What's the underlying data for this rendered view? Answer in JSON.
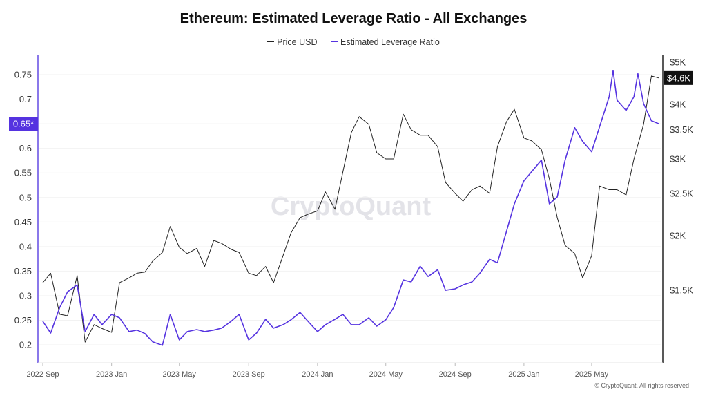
{
  "chart_data": {
    "type": "line",
    "title": "Ethereum: Estimated Leverage Ratio - All Exchanges",
    "legend": {
      "placement": "top-center"
    },
    "grid": true,
    "watermark": "CryptoQuant",
    "footer": "© CryptoQuant. All rights reserved",
    "x_axis": {
      "type": "date",
      "range": [
        "2022-09-01",
        "2025-08-28"
      ],
      "ticks": [
        [
          "2022-09-01",
          "2022 Sep"
        ],
        [
          "2023-01-01",
          "2023 Jan"
        ],
        [
          "2023-05-01",
          "2023 May"
        ],
        [
          "2023-09-01",
          "2023 Sep"
        ],
        [
          "2024-01-01",
          "2024 Jan"
        ],
        [
          "2024-05-01",
          "2024 May"
        ],
        [
          "2024-09-01",
          "2024 Sep"
        ],
        [
          "2025-01-01",
          "2025 Jan"
        ],
        [
          "2025-05-01",
          "2025 May"
        ]
      ]
    },
    "y_left": {
      "range": [
        0.17,
        0.795
      ],
      "ticks": [
        "0.2",
        "0.25",
        "0.3",
        "0.35",
        "0.4",
        "0.45",
        "0.5",
        "0.55",
        "0.6",
        "0.65",
        "0.7",
        "0.75"
      ],
      "current_label": "0.65*",
      "current_value": 0.65,
      "color": "#5533e0"
    },
    "y_right": {
      "scale": "log",
      "range": [
        1050,
        5100
      ],
      "ticks": [
        [
          1500,
          "$1.5K"
        ],
        [
          2000,
          "$2K"
        ],
        [
          2500,
          "$2.5K"
        ],
        [
          3000,
          "$3K"
        ],
        [
          3500,
          "$3.5K"
        ],
        [
          4000,
          "$4K"
        ],
        [
          5000,
          "$5K"
        ]
      ],
      "current_label": "$4.6K",
      "current_value": 4600
    },
    "series": [
      {
        "name": "Price USD",
        "axis": "right",
        "color": "#222222",
        "points": [
          [
            "2022-09-01",
            1560
          ],
          [
            "2022-09-15",
            1640
          ],
          [
            "2022-10-01",
            1320
          ],
          [
            "2022-10-15",
            1310
          ],
          [
            "2022-11-01",
            1620
          ],
          [
            "2022-11-15",
            1140
          ],
          [
            "2022-12-01",
            1250
          ],
          [
            "2022-12-15",
            1225
          ],
          [
            "2023-01-01",
            1200
          ],
          [
            "2023-01-15",
            1560
          ],
          [
            "2023-02-01",
            1600
          ],
          [
            "2023-02-15",
            1640
          ],
          [
            "2023-03-01",
            1650
          ],
          [
            "2023-03-15",
            1750
          ],
          [
            "2023-04-01",
            1830
          ],
          [
            "2023-04-15",
            2100
          ],
          [
            "2023-05-01",
            1880
          ],
          [
            "2023-05-15",
            1820
          ],
          [
            "2023-06-01",
            1870
          ],
          [
            "2023-06-15",
            1700
          ],
          [
            "2023-07-01",
            1950
          ],
          [
            "2023-07-15",
            1920
          ],
          [
            "2023-08-01",
            1860
          ],
          [
            "2023-08-15",
            1830
          ],
          [
            "2023-09-01",
            1640
          ],
          [
            "2023-09-15",
            1620
          ],
          [
            "2023-10-01",
            1700
          ],
          [
            "2023-10-15",
            1560
          ],
          [
            "2023-11-01",
            1800
          ],
          [
            "2023-11-15",
            2030
          ],
          [
            "2023-12-01",
            2200
          ],
          [
            "2023-12-15",
            2240
          ],
          [
            "2024-01-01",
            2280
          ],
          [
            "2024-01-15",
            2520
          ],
          [
            "2024-02-01",
            2300
          ],
          [
            "2024-02-15",
            2800
          ],
          [
            "2024-03-01",
            3450
          ],
          [
            "2024-03-15",
            3750
          ],
          [
            "2024-04-01",
            3600
          ],
          [
            "2024-04-15",
            3100
          ],
          [
            "2024-05-01",
            3000
          ],
          [
            "2024-05-15",
            3000
          ],
          [
            "2024-06-01",
            3800
          ],
          [
            "2024-06-15",
            3500
          ],
          [
            "2024-07-01",
            3400
          ],
          [
            "2024-07-15",
            3400
          ],
          [
            "2024-08-01",
            3200
          ],
          [
            "2024-08-15",
            2650
          ],
          [
            "2024-09-01",
            2500
          ],
          [
            "2024-09-15",
            2400
          ],
          [
            "2024-10-01",
            2550
          ],
          [
            "2024-10-15",
            2600
          ],
          [
            "2024-11-01",
            2500
          ],
          [
            "2024-11-15",
            3200
          ],
          [
            "2024-12-01",
            3650
          ],
          [
            "2024-12-15",
            3900
          ],
          [
            "2025-01-01",
            3350
          ],
          [
            "2025-01-15",
            3300
          ],
          [
            "2025-02-01",
            3150
          ],
          [
            "2025-02-15",
            2700
          ],
          [
            "2025-03-01",
            2200
          ],
          [
            "2025-03-15",
            1900
          ],
          [
            "2025-04-01",
            1820
          ],
          [
            "2025-04-15",
            1600
          ],
          [
            "2025-05-01",
            1800
          ],
          [
            "2025-05-15",
            2600
          ],
          [
            "2025-06-01",
            2550
          ],
          [
            "2025-06-15",
            2550
          ],
          [
            "2025-07-01",
            2480
          ],
          [
            "2025-07-15",
            3000
          ],
          [
            "2025-08-01",
            3600
          ],
          [
            "2025-08-15",
            4650
          ],
          [
            "2025-08-28",
            4600
          ]
        ]
      },
      {
        "name": "Estimated Leverage Ratio",
        "axis": "left",
        "color": "#5533e0",
        "points": [
          [
            "2022-09-01",
            0.248
          ],
          [
            "2022-09-15",
            0.224
          ],
          [
            "2022-10-01",
            0.276
          ],
          [
            "2022-10-15",
            0.308
          ],
          [
            "2022-11-01",
            0.322
          ],
          [
            "2022-11-15",
            0.227
          ],
          [
            "2022-12-01",
            0.262
          ],
          [
            "2022-12-15",
            0.241
          ],
          [
            "2023-01-01",
            0.262
          ],
          [
            "2023-01-15",
            0.255
          ],
          [
            "2023-02-01",
            0.227
          ],
          [
            "2023-02-15",
            0.23
          ],
          [
            "2023-03-01",
            0.223
          ],
          [
            "2023-03-15",
            0.206
          ],
          [
            "2023-04-01",
            0.199
          ],
          [
            "2023-04-15",
            0.262
          ],
          [
            "2023-05-01",
            0.21
          ],
          [
            "2023-05-15",
            0.227
          ],
          [
            "2023-06-01",
            0.231
          ],
          [
            "2023-06-15",
            0.227
          ],
          [
            "2023-07-01",
            0.23
          ],
          [
            "2023-07-15",
            0.234
          ],
          [
            "2023-08-01",
            0.248
          ],
          [
            "2023-08-15",
            0.262
          ],
          [
            "2023-09-01",
            0.21
          ],
          [
            "2023-09-15",
            0.224
          ],
          [
            "2023-10-01",
            0.252
          ],
          [
            "2023-10-15",
            0.234
          ],
          [
            "2023-11-01",
            0.241
          ],
          [
            "2023-11-15",
            0.251
          ],
          [
            "2023-12-01",
            0.266
          ],
          [
            "2023-12-15",
            0.248
          ],
          [
            "2024-01-01",
            0.227
          ],
          [
            "2024-01-15",
            0.241
          ],
          [
            "2024-02-01",
            0.252
          ],
          [
            "2024-02-15",
            0.262
          ],
          [
            "2024-03-01",
            0.241
          ],
          [
            "2024-03-15",
            0.241
          ],
          [
            "2024-04-01",
            0.255
          ],
          [
            "2024-04-15",
            0.238
          ],
          [
            "2024-05-01",
            0.251
          ],
          [
            "2024-05-15",
            0.276
          ],
          [
            "2024-06-01",
            0.332
          ],
          [
            "2024-06-15",
            0.328
          ],
          [
            "2024-07-01",
            0.36
          ],
          [
            "2024-07-15",
            0.339
          ],
          [
            "2024-08-01",
            0.353
          ],
          [
            "2024-08-15",
            0.311
          ],
          [
            "2024-09-01",
            0.314
          ],
          [
            "2024-09-15",
            0.322
          ],
          [
            "2024-10-01",
            0.328
          ],
          [
            "2024-10-15",
            0.346
          ],
          [
            "2024-11-01",
            0.374
          ],
          [
            "2024-11-15",
            0.367
          ],
          [
            "2024-12-01",
            0.431
          ],
          [
            "2024-12-15",
            0.487
          ],
          [
            "2025-01-01",
            0.534
          ],
          [
            "2025-01-15",
            0.553
          ],
          [
            "2025-02-01",
            0.576
          ],
          [
            "2025-02-15",
            0.487
          ],
          [
            "2025-03-01",
            0.501
          ],
          [
            "2025-03-15",
            0.576
          ],
          [
            "2025-04-01",
            0.642
          ],
          [
            "2025-04-15",
            0.614
          ],
          [
            "2025-05-01",
            0.593
          ],
          [
            "2025-05-15",
            0.644
          ],
          [
            "2025-06-01",
            0.705
          ],
          [
            "2025-06-08",
            0.758
          ],
          [
            "2025-06-15",
            0.698
          ],
          [
            "2025-07-01",
            0.677
          ],
          [
            "2025-07-15",
            0.705
          ],
          [
            "2025-07-22",
            0.752
          ],
          [
            "2025-08-01",
            0.691
          ],
          [
            "2025-08-15",
            0.656
          ],
          [
            "2025-08-28",
            0.65
          ]
        ]
      }
    ]
  }
}
